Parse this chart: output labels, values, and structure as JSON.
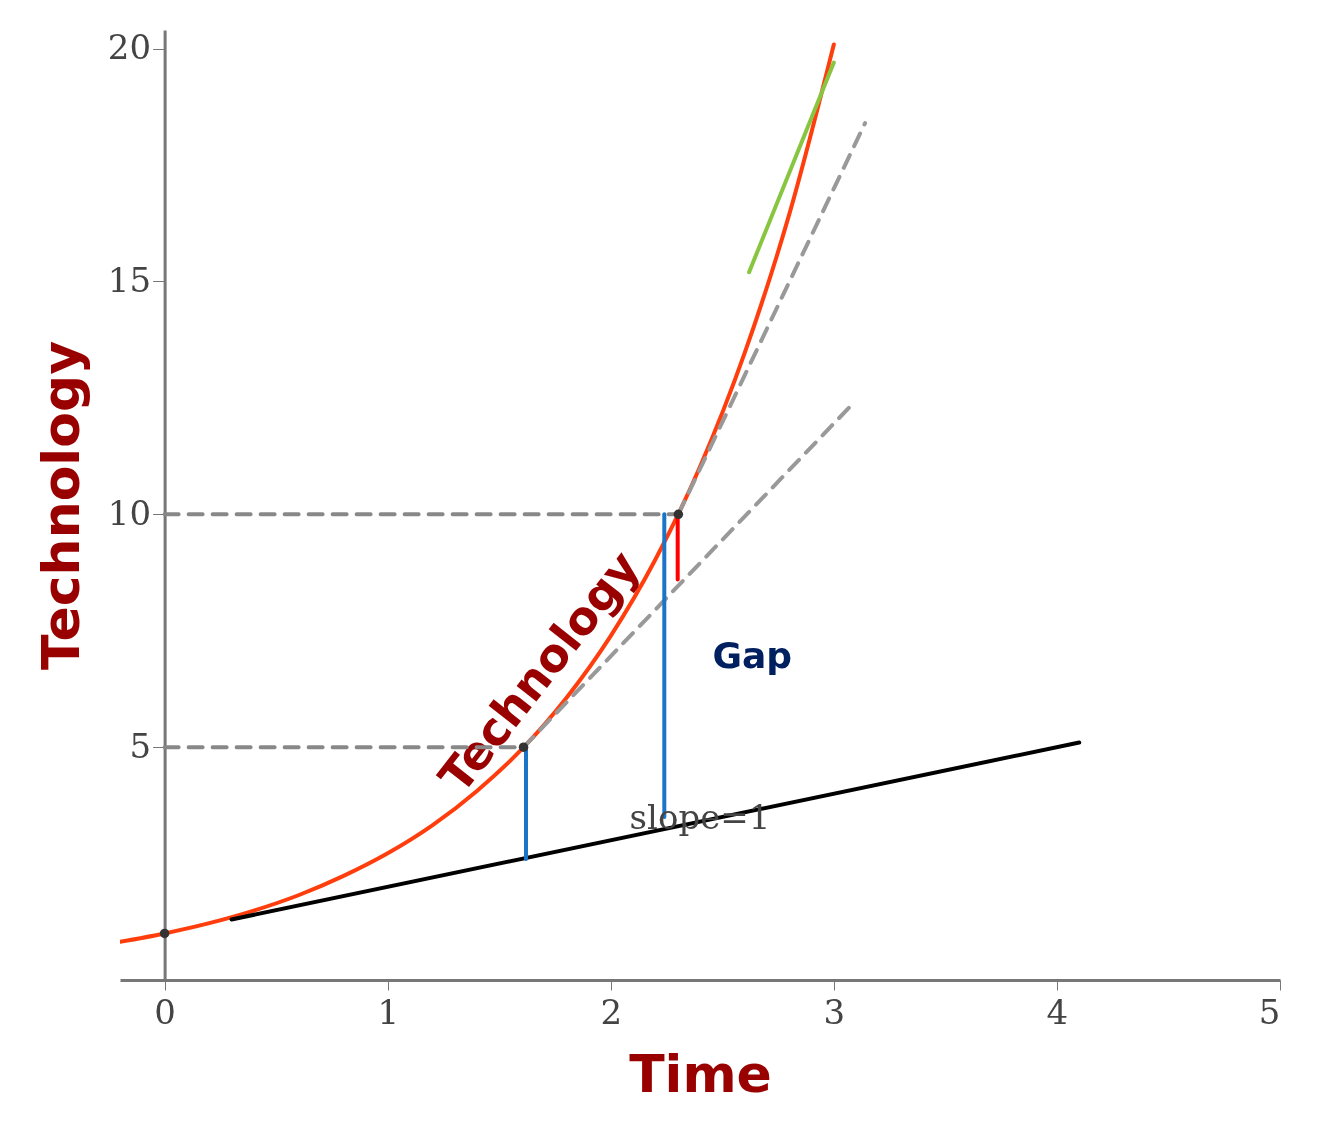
{
  "chart_data": {
    "type": "line",
    "xlabel": "Time",
    "ylabel": "Technology",
    "xlim": [
      -0.2,
      5
    ],
    "ylim": [
      0,
      20.4
    ],
    "xticks": [
      0,
      1,
      2,
      3,
      4,
      5
    ],
    "yticks": [
      5,
      10,
      15,
      20
    ],
    "grid": false,
    "series": [
      {
        "name": "Technology",
        "color": "#ff3d0d",
        "x": [
          -0.2,
          0,
          0.2,
          0.4,
          0.6,
          0.8,
          1,
          1.2,
          1.4,
          1.6,
          1.8,
          2,
          2.2,
          2.4,
          2.6,
          2.8,
          3
        ],
        "values": [
          0.82,
          1,
          1.22,
          1.49,
          1.82,
          2.23,
          2.72,
          3.32,
          4.06,
          4.95,
          6.05,
          7.39,
          9.03,
          11.02,
          13.46,
          16.44,
          20.09
        ]
      },
      {
        "color": "#999999",
        "line_style": "dashed",
        "x": [
          1.609,
          3.07
        ],
        "values": [
          5,
          12.3
        ]
      },
      {
        "color": "#999999",
        "line_style": "dashed",
        "x": [
          2.303,
          3.14
        ],
        "values": [
          10,
          18.4
        ]
      },
      {
        "color": "#888888",
        "line_style": "dashed",
        "x": [
          0,
          1.609
        ],
        "values": [
          5,
          5
        ]
      },
      {
        "color": "#888888",
        "line_style": "dashed",
        "x": [
          0,
          2.303
        ],
        "values": [
          10,
          10
        ]
      },
      {
        "color": "#000000",
        "x": [
          0.3,
          4.1
        ],
        "values": [
          1.3,
          5.1
        ]
      },
      {
        "color": "#1a75c9",
        "x": [
          1.62,
          1.62
        ],
        "values": [
          2.6,
          5
        ]
      },
      {
        "color": "#1a75c9",
        "x": [
          2.24,
          2.24
        ],
        "values": [
          3.5,
          10
        ]
      },
      {
        "color": "#ff0000",
        "x": [
          2.3,
          2.3
        ],
        "values": [
          8.6,
          10
        ]
      },
      {
        "color": "#88c540",
        "x": [
          2.62,
          3.0
        ],
        "values": [
          15.2,
          19.7
        ]
      },
      {
        "type": "scatter",
        "color": "#333333",
        "marker": "circle",
        "x": [
          0,
          1.609,
          2.303
        ],
        "values": [
          1,
          5,
          10
        ]
      }
    ],
    "annotations": [
      "Gap",
      "slope=1"
    ]
  }
}
